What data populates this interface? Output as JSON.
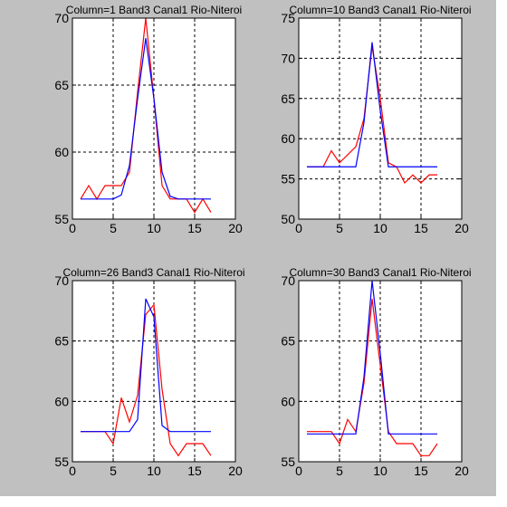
{
  "figure": {
    "background": "#c0c0c0",
    "axes_background": "#ffffff"
  },
  "colors": {
    "red": "#ff0000",
    "blue": "#0000ff",
    "grid": "#000000"
  },
  "chart_data": [
    {
      "type": "line",
      "title": "Column=1 Band3 Canal1 Rio-Niteroi",
      "xlim": [
        0,
        20
      ],
      "ylim": [
        55,
        70
      ],
      "xticks": [
        0,
        5,
        10,
        15,
        20
      ],
      "yticks": [
        55,
        60,
        65,
        70
      ],
      "grid": true,
      "series": [
        {
          "color": "red",
          "x": [
            1,
            2,
            3,
            4,
            5,
            6,
            7,
            8,
            9,
            10,
            11,
            12,
            13,
            14,
            15,
            16,
            17
          ],
          "values": [
            56.5,
            57.5,
            56.5,
            57.5,
            57.5,
            57.5,
            58.5,
            64.5,
            70.0,
            64.0,
            57.5,
            56.5,
            56.5,
            56.5,
            55.5,
            56.5,
            55.5
          ]
        },
        {
          "color": "blue",
          "x": [
            1,
            2,
            3,
            4,
            5,
            6,
            7,
            8,
            9,
            10,
            11,
            12,
            13,
            14,
            15,
            16,
            17
          ],
          "values": [
            56.5,
            56.5,
            56.5,
            56.5,
            56.5,
            56.8,
            59.0,
            64.0,
            68.5,
            64.0,
            58.5,
            56.7,
            56.5,
            56.5,
            56.5,
            56.5,
            56.5
          ]
        }
      ]
    },
    {
      "type": "line",
      "title": "Column=10 Band3 Canal1 Rio-Niteroi",
      "xlim": [
        0,
        20
      ],
      "ylim": [
        50,
        75
      ],
      "xticks": [
        0,
        5,
        10,
        15,
        20
      ],
      "yticks": [
        50,
        55,
        60,
        65,
        70,
        75
      ],
      "grid": true,
      "series": [
        {
          "color": "red",
          "x": [
            1,
            2,
            3,
            4,
            5,
            6,
            7,
            8,
            9,
            10,
            11,
            12,
            13,
            14,
            15,
            16,
            17
          ],
          "values": [
            56.5,
            56.5,
            56.5,
            58.5,
            57.0,
            58.0,
            59.0,
            62.5,
            71.5,
            65.0,
            57.0,
            56.5,
            54.5,
            55.5,
            54.5,
            55.5,
            55.5
          ]
        },
        {
          "color": "blue",
          "x": [
            1,
            2,
            3,
            4,
            5,
            6,
            7,
            8,
            9,
            10,
            11,
            12,
            13,
            14,
            15,
            16,
            17
          ],
          "values": [
            56.5,
            56.5,
            56.5,
            56.5,
            56.5,
            56.5,
            56.5,
            62.0,
            72.0,
            63.5,
            56.5,
            56.5,
            56.5,
            56.5,
            56.5,
            56.5,
            56.5
          ]
        }
      ]
    },
    {
      "type": "line",
      "title": "Column=26 Band3 Canal1 Rio-Niteroi",
      "xlim": [
        0,
        20
      ],
      "ylim": [
        55,
        70
      ],
      "xticks": [
        0,
        5,
        10,
        15,
        20
      ],
      "yticks": [
        55,
        60,
        65,
        70
      ],
      "grid": true,
      "series": [
        {
          "color": "red",
          "x": [
            1,
            2,
            3,
            4,
            5,
            6,
            7,
            8,
            9,
            10,
            11,
            12,
            13,
            14,
            15,
            16,
            17
          ],
          "values": [
            57.5,
            57.5,
            57.5,
            57.5,
            56.5,
            60.3,
            58.3,
            60.5,
            67.2,
            68.0,
            61.0,
            56.5,
            55.5,
            56.5,
            56.5,
            56.5,
            55.5
          ]
        },
        {
          "color": "blue",
          "x": [
            1,
            2,
            3,
            4,
            5,
            6,
            7,
            8,
            9,
            10,
            11,
            12,
            13,
            14,
            15,
            16,
            17
          ],
          "values": [
            57.5,
            57.5,
            57.5,
            57.5,
            57.5,
            57.5,
            57.5,
            58.5,
            68.5,
            67.0,
            58.0,
            57.5,
            57.5,
            57.5,
            57.5,
            57.5,
            57.5
          ]
        }
      ]
    },
    {
      "type": "line",
      "title": "Column=30 Band3 Canal1 Rio-Niteroi",
      "xlim": [
        0,
        20
      ],
      "ylim": [
        55,
        70
      ],
      "xticks": [
        0,
        5,
        10,
        15,
        20
      ],
      "yticks": [
        55,
        60,
        65,
        70
      ],
      "grid": true,
      "series": [
        {
          "color": "red",
          "x": [
            1,
            2,
            3,
            4,
            5,
            6,
            7,
            8,
            9,
            10,
            11,
            12,
            13,
            14,
            15,
            16,
            17
          ],
          "values": [
            57.5,
            57.5,
            57.5,
            57.5,
            56.5,
            58.5,
            57.5,
            61.5,
            68.5,
            63.0,
            57.5,
            56.5,
            56.5,
            56.5,
            55.5,
            55.5,
            56.5
          ]
        },
        {
          "color": "blue",
          "x": [
            1,
            2,
            3,
            4,
            5,
            6,
            7,
            8,
            9,
            10,
            11,
            12,
            13,
            14,
            15,
            16,
            17
          ],
          "values": [
            57.3,
            57.3,
            57.3,
            57.3,
            57.3,
            57.3,
            57.3,
            62.0,
            70.0,
            64.0,
            57.3,
            57.3,
            57.3,
            57.3,
            57.3,
            57.3,
            57.3
          ]
        }
      ]
    }
  ]
}
